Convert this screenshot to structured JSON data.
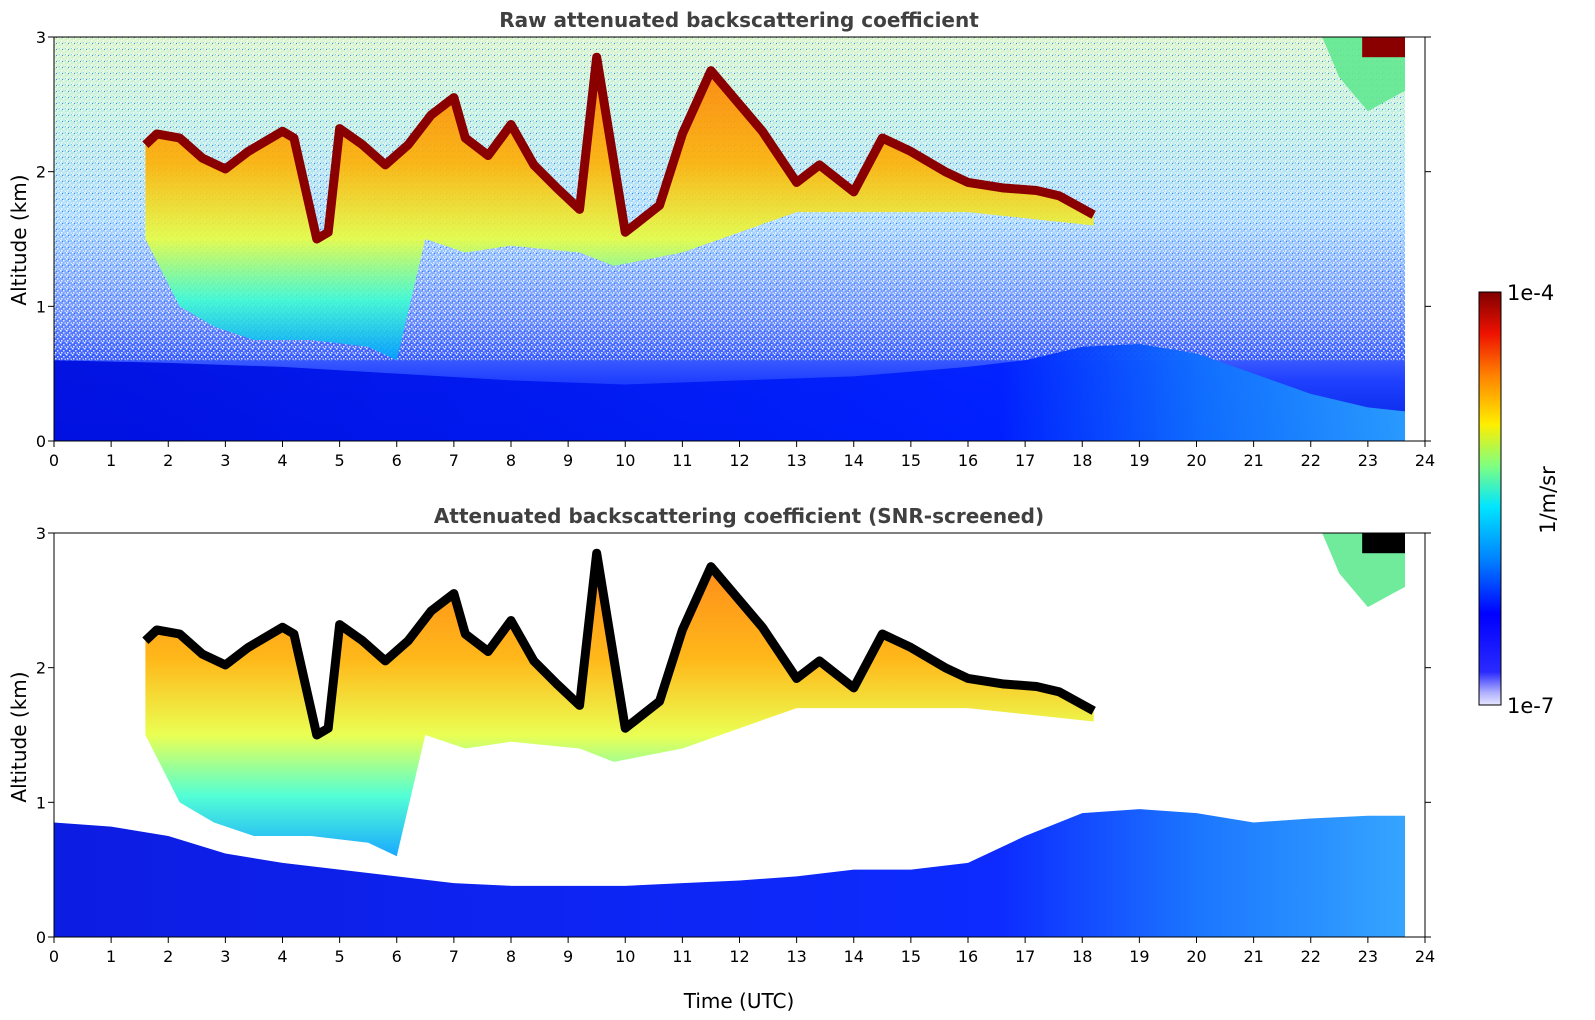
{
  "colors": {
    "jet_low": "#0000cc",
    "jet_mid": "#80ff80",
    "jet_high": "#7f0000",
    "cloud_top": "#000000",
    "axis": "#000000",
    "title_text": "#404040"
  },
  "chart_data": [
    {
      "type": "heatmap",
      "title": "Raw attenuated backscattering coefficient",
      "xlabel": "",
      "ylabel": "Altitude (km)",
      "xlim": [
        0,
        24
      ],
      "ylim": [
        0,
        3
      ],
      "x_ticks": [
        "0",
        "1",
        "2",
        "3",
        "4",
        "5",
        "6",
        "7",
        "8",
        "9",
        "10",
        "11",
        "12",
        "13",
        "14",
        "15",
        "16",
        "17",
        "18",
        "19",
        "20",
        "21",
        "22",
        "23",
        "24"
      ],
      "y_ticks": [
        "0",
        "1",
        "2",
        "3"
      ],
      "data_end_time": 23.65,
      "colorscale": "jet",
      "background": "noisy",
      "cloud_top_profile": [
        [
          1.6,
          2.2
        ],
        [
          1.8,
          2.28
        ],
        [
          2.2,
          2.25
        ],
        [
          2.6,
          2.1
        ],
        [
          3.0,
          2.02
        ],
        [
          3.4,
          2.15
        ],
        [
          4.0,
          2.3
        ],
        [
          4.2,
          2.25
        ],
        [
          4.6,
          1.5
        ],
        [
          4.8,
          1.55
        ],
        [
          5.0,
          2.32
        ],
        [
          5.4,
          2.2
        ],
        [
          5.8,
          2.05
        ],
        [
          6.2,
          2.2
        ],
        [
          6.6,
          2.42
        ],
        [
          7.0,
          2.55
        ],
        [
          7.2,
          2.25
        ],
        [
          7.6,
          2.12
        ],
        [
          8.0,
          2.35
        ],
        [
          8.4,
          2.05
        ],
        [
          8.8,
          1.88
        ],
        [
          9.2,
          1.72
        ],
        [
          9.5,
          2.85
        ],
        [
          10.0,
          1.55
        ],
        [
          10.6,
          1.75
        ],
        [
          11.0,
          2.28
        ],
        [
          11.5,
          2.75
        ],
        [
          12.4,
          2.3
        ],
        [
          13.0,
          1.92
        ],
        [
          13.4,
          2.05
        ],
        [
          14.0,
          1.85
        ],
        [
          14.5,
          2.25
        ],
        [
          15.0,
          2.15
        ],
        [
          15.6,
          2.0
        ],
        [
          16.0,
          1.92
        ],
        [
          16.6,
          1.88
        ],
        [
          17.2,
          1.86
        ],
        [
          17.6,
          1.82
        ],
        [
          18.2,
          1.68
        ]
      ],
      "boundary_layer_top": [
        [
          0,
          0.6
        ],
        [
          2,
          0.58
        ],
        [
          4,
          0.55
        ],
        [
          6,
          0.5
        ],
        [
          8,
          0.45
        ],
        [
          10,
          0.42
        ],
        [
          12,
          0.45
        ],
        [
          14,
          0.48
        ],
        [
          16,
          0.55
        ],
        [
          17,
          0.6
        ],
        [
          18,
          0.7
        ],
        [
          19,
          0.72
        ],
        [
          20,
          0.65
        ],
        [
          21,
          0.5
        ],
        [
          22,
          0.35
        ],
        [
          23,
          0.25
        ],
        [
          23.65,
          0.22
        ]
      ]
    },
    {
      "type": "heatmap",
      "title": "Attenuated backscattering coefficient (SNR-screened)",
      "xlabel": "Time (UTC)",
      "ylabel": "Altitude (km)",
      "xlim": [
        0,
        24
      ],
      "ylim": [
        0,
        3
      ],
      "x_ticks": [
        "0",
        "1",
        "2",
        "3",
        "4",
        "5",
        "6",
        "7",
        "8",
        "9",
        "10",
        "11",
        "12",
        "13",
        "14",
        "15",
        "16",
        "17",
        "18",
        "19",
        "20",
        "21",
        "22",
        "23",
        "24"
      ],
      "y_ticks": [
        "0",
        "1",
        "2",
        "3"
      ],
      "data_end_time": 23.65,
      "colorscale": "jet",
      "background": "screened",
      "cloud_top_profile": [
        [
          1.6,
          2.2
        ],
        [
          1.8,
          2.28
        ],
        [
          2.2,
          2.25
        ],
        [
          2.6,
          2.1
        ],
        [
          3.0,
          2.02
        ],
        [
          3.4,
          2.15
        ],
        [
          4.0,
          2.3
        ],
        [
          4.2,
          2.25
        ],
        [
          4.6,
          1.5
        ],
        [
          4.8,
          1.55
        ],
        [
          5.0,
          2.32
        ],
        [
          5.4,
          2.2
        ],
        [
          5.8,
          2.05
        ],
        [
          6.2,
          2.2
        ],
        [
          6.6,
          2.42
        ],
        [
          7.0,
          2.55
        ],
        [
          7.2,
          2.25
        ],
        [
          7.6,
          2.12
        ],
        [
          8.0,
          2.35
        ],
        [
          8.4,
          2.05
        ],
        [
          8.8,
          1.88
        ],
        [
          9.2,
          1.72
        ],
        [
          9.5,
          2.85
        ],
        [
          10.0,
          1.55
        ],
        [
          10.6,
          1.75
        ],
        [
          11.0,
          2.28
        ],
        [
          11.5,
          2.75
        ],
        [
          12.4,
          2.3
        ],
        [
          13.0,
          1.92
        ],
        [
          13.4,
          2.05
        ],
        [
          14.0,
          1.85
        ],
        [
          14.5,
          2.25
        ],
        [
          15.0,
          2.15
        ],
        [
          15.6,
          2.0
        ],
        [
          16.0,
          1.92
        ],
        [
          16.6,
          1.88
        ],
        [
          17.2,
          1.86
        ],
        [
          17.6,
          1.82
        ],
        [
          18.2,
          1.68
        ]
      ],
      "boundary_layer_top": [
        [
          0,
          0.85
        ],
        [
          1,
          0.82
        ],
        [
          2,
          0.75
        ],
        [
          3,
          0.62
        ],
        [
          4,
          0.55
        ],
        [
          5,
          0.5
        ],
        [
          6,
          0.45
        ],
        [
          7,
          0.4
        ],
        [
          8,
          0.38
        ],
        [
          9,
          0.38
        ],
        [
          10,
          0.38
        ],
        [
          11,
          0.4
        ],
        [
          12,
          0.42
        ],
        [
          13,
          0.45
        ],
        [
          14,
          0.5
        ],
        [
          15,
          0.5
        ],
        [
          16,
          0.55
        ],
        [
          17,
          0.75
        ],
        [
          18,
          0.92
        ],
        [
          19,
          0.95
        ],
        [
          20,
          0.92
        ],
        [
          21,
          0.85
        ],
        [
          22,
          0.88
        ],
        [
          23,
          0.9
        ],
        [
          23.65,
          0.9
        ]
      ]
    }
  ],
  "colorbar": {
    "label": "1/m/sr",
    "max_label": "1e-4",
    "min_label": "1e-7",
    "scale": "log",
    "range": [
      1e-07,
      0.0001
    ]
  }
}
